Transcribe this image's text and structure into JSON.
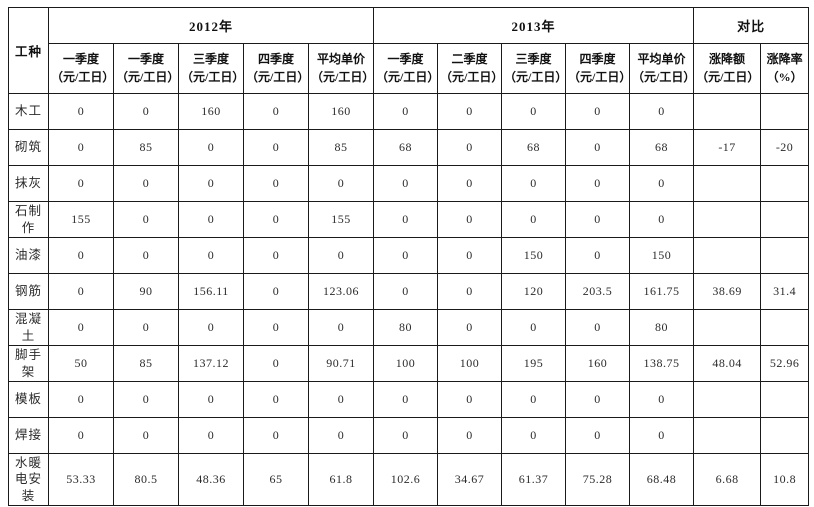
{
  "table": {
    "corner_header": "工种",
    "year_groups": [
      {
        "label": "2012年",
        "subheaders": [
          "一季度\n（元/工日）",
          "一季度\n（元/工日）",
          "三季度\n（元/工日）",
          "四季度\n（元/工日）",
          "平均单价\n（元/工日）"
        ]
      },
      {
        "label": "2013年",
        "subheaders": [
          "一季度\n（元/工日）",
          "二季度\n（元/工日）",
          "三季度\n（元/工日）",
          "四季度\n（元/工日）",
          "平均单价\n（元/工日）"
        ]
      }
    ],
    "compare_group": {
      "label": "对比",
      "subheaders": [
        "涨降额\n（元/工日）",
        "涨降率\n（%）"
      ]
    },
    "rows": [
      {
        "label": "木工",
        "values": [
          "0",
          "0",
          "160",
          "0",
          "160",
          "0",
          "0",
          "0",
          "0",
          "0",
          "",
          ""
        ]
      },
      {
        "label": "砌筑",
        "values": [
          "0",
          "85",
          "0",
          "0",
          "85",
          "68",
          "0",
          "68",
          "0",
          "68",
          "-17",
          "-20"
        ]
      },
      {
        "label": "抹灰",
        "values": [
          "0",
          "0",
          "0",
          "0",
          "0",
          "0",
          "0",
          "0",
          "0",
          "0",
          "",
          ""
        ]
      },
      {
        "label": "石制作",
        "values": [
          "155",
          "0",
          "0",
          "0",
          "155",
          "0",
          "0",
          "0",
          "0",
          "0",
          "",
          ""
        ]
      },
      {
        "label": "油漆",
        "values": [
          "0",
          "0",
          "0",
          "0",
          "0",
          "0",
          "0",
          "150",
          "0",
          "150",
          "",
          ""
        ]
      },
      {
        "label": "钢筋",
        "values": [
          "0",
          "90",
          "156.11",
          "0",
          "123.06",
          "0",
          "0",
          "120",
          "203.5",
          "161.75",
          "38.69",
          "31.4"
        ]
      },
      {
        "label": "混凝土",
        "values": [
          "0",
          "0",
          "0",
          "0",
          "0",
          "80",
          "0",
          "0",
          "0",
          "80",
          "",
          ""
        ]
      },
      {
        "label": "脚手架",
        "values": [
          "50",
          "85",
          "137.12",
          "0",
          "90.71",
          "100",
          "100",
          "195",
          "160",
          "138.75",
          "48.04",
          "52.96"
        ]
      },
      {
        "label": "模板",
        "values": [
          "0",
          "0",
          "0",
          "0",
          "0",
          "0",
          "0",
          "0",
          "0",
          "0",
          "",
          ""
        ]
      },
      {
        "label": "焊接",
        "values": [
          "0",
          "0",
          "0",
          "0",
          "0",
          "0",
          "0",
          "0",
          "0",
          "0",
          "",
          ""
        ]
      },
      {
        "label": "水暖电安装",
        "values": [
          "53.33",
          "80.5",
          "48.36",
          "65",
          "61.8",
          "102.6",
          "34.67",
          "61.37",
          "75.28",
          "68.48",
          "6.68",
          "10.8"
        ]
      }
    ],
    "colors": {
      "border": "#1a1a1a",
      "text": "#2b2b2b",
      "background": "#ffffff"
    }
  }
}
